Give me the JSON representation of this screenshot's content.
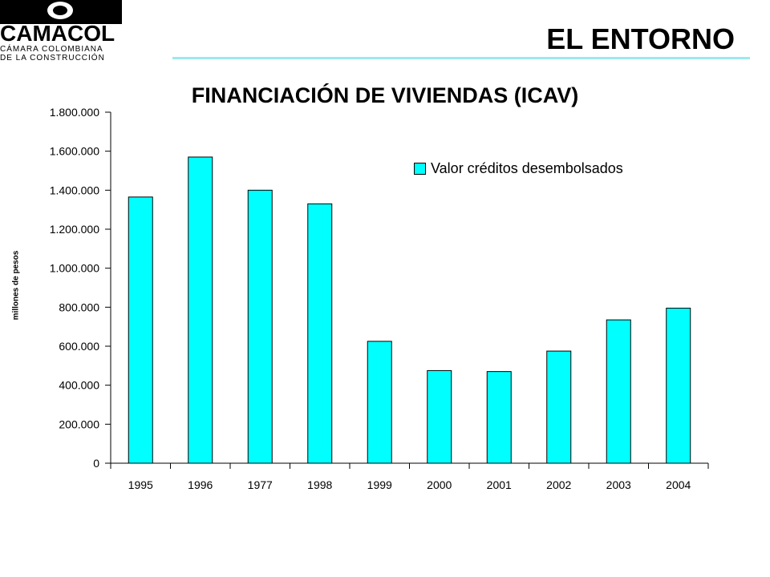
{
  "header": {
    "logo_name": "CAMACOL",
    "logo_sub1": "CÁMARA COLOMBIANA",
    "logo_sub2": "DE LA CONSTRUCCIÓN",
    "section_title": "EL ENTORNO"
  },
  "colors": {
    "bar": "#00ffff",
    "accent_line": "#9be9f0",
    "axis": "#000000"
  },
  "chart_data": {
    "type": "bar",
    "title": "FINANCIACIÓN DE VIVIENDAS (ICAV)",
    "ylabel": "millones de pesos",
    "xlabel": "",
    "categories": [
      "1995",
      "1996",
      "1977",
      "1998",
      "1999",
      "2000",
      "2001",
      "2002",
      "2003",
      "2004"
    ],
    "series": [
      {
        "name": "Valor créditos desembolsados",
        "values": [
          1365000,
          1570000,
          1400000,
          1330000,
          625000,
          475000,
          470000,
          575000,
          735000,
          795000
        ]
      }
    ],
    "ylim": [
      0,
      1800000
    ],
    "yticks": [
      0,
      200000,
      400000,
      600000,
      800000,
      1000000,
      1200000,
      1400000,
      1600000,
      1800000
    ],
    "ytick_labels": [
      "0",
      "200.000",
      "400.000",
      "600.000",
      "800.000",
      "1.000.000",
      "1.200.000",
      "1.400.000",
      "1.600.000",
      "1.800.000"
    ],
    "grid": false,
    "legend_position": "top-right"
  }
}
